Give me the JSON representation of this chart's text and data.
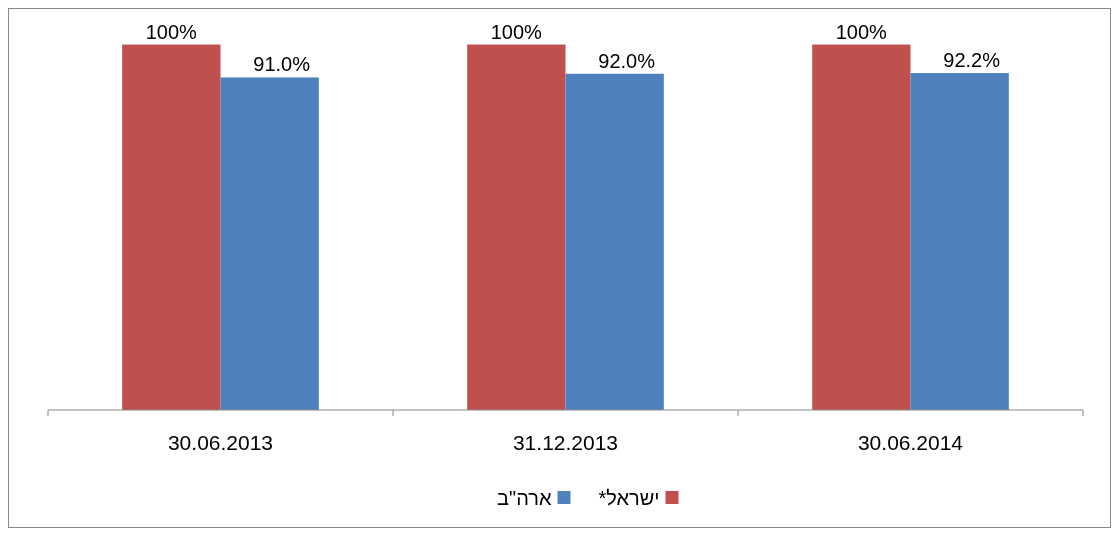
{
  "chart_data": {
    "type": "bar",
    "categories": [
      "30.06.2013",
      "31.12.2013",
      "30.06.2014"
    ],
    "series": [
      {
        "name": "ישראל*",
        "color": "#c0504d",
        "values": [
          100,
          100,
          100
        ],
        "value_labels": [
          "100%",
          "100%",
          "100%"
        ]
      },
      {
        "name": "ארה\"ב",
        "color": "#4f81bd",
        "values": [
          91.0,
          92.0,
          92.2
        ],
        "value_labels": [
          "91.0%",
          "92.0%",
          "92.2%"
        ]
      }
    ],
    "ylim": [
      0,
      110
    ],
    "tick_labels": "x",
    "legend": "bottom"
  }
}
